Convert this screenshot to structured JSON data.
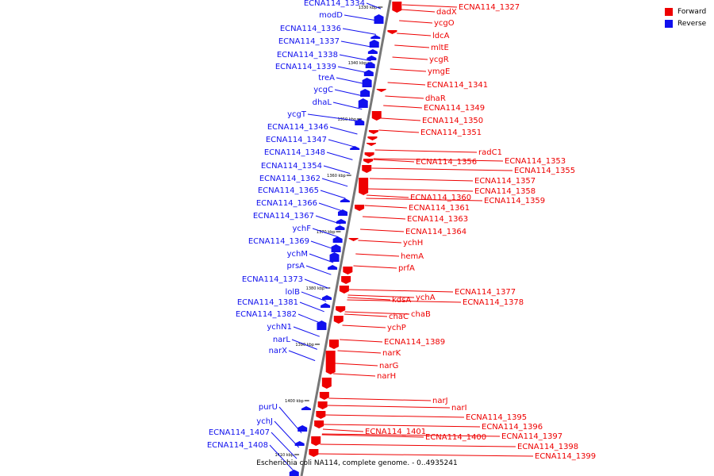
{
  "legend": {
    "forward": {
      "label": "Forward",
      "color": "#ee0000"
    },
    "reverse": {
      "label": "Reverse",
      "color": "#1010ee"
    }
  },
  "caption": "Escherichia coli NA114, complete genome. - 0..4935241",
  "backbone_color": "#777777",
  "ticks": [
    "1330 kbp",
    "1340 kbp",
    "1350 kbp",
    "1360 kbp",
    "1370 kbp",
    "1380 kbp",
    "1390 kbp",
    "1400 kbp",
    "1410 kbp"
  ],
  "reverse_labels": [
    "ECNA114_1334",
    "modD",
    "ECNA114_1336",
    "ECNA114_1337",
    "ECNA114_1338",
    "ECNA114_1339",
    "treA",
    "ycgC",
    "dhaL",
    "ycgT",
    "ECNA114_1346",
    "ECNA114_1347",
    "ECNA114_1348",
    "ECNA114_1354",
    "ECNA114_1362",
    "ECNA114_1365",
    "ECNA114_1366",
    "ECNA114_1367",
    "ychF",
    "ECNA114_1369",
    "ychM",
    "prsA",
    "ECNA114_1373",
    "lolB",
    "ECNA114_1381",
    "ECNA114_1382",
    "ychN1",
    "narL",
    "narX",
    "purU",
    "ychJ",
    "ECNA114_1407",
    "ECNA114_1408"
  ],
  "forward_labels": [
    "ECNA114_1327",
    "dadX",
    "ycgO",
    "ldcA",
    "mltE",
    "ycgR",
    "ymgE",
    "ECNA114_1341",
    "dhaR",
    "ECNA114_1349",
    "ECNA114_1350",
    "ECNA114_1351",
    "radC1",
    "ECNA114_1353",
    "ECNA114_1356",
    "ECNA114_1355",
    "ECNA114_1357",
    "ECNA114_1358",
    "ECNA114_1360",
    "ECNA114_1359",
    "ECNA114_1361",
    "ECNA114_1363",
    "ECNA114_1364",
    "ychH",
    "hemA",
    "prfA",
    "ECNA114_1377",
    "ychA",
    "kdsA",
    "ECNA114_1378",
    "chaC",
    "chaB",
    "ychP",
    "ECNA114_1389",
    "narK",
    "narG",
    "narH",
    "narJ",
    "narI",
    "ECNA114_1395",
    "ECNA114_1396",
    "ECNA114_1401",
    "ECNA114_1400",
    "ECNA114_1397",
    "ECNA114_1398",
    "ECNA114_1399"
  ]
}
